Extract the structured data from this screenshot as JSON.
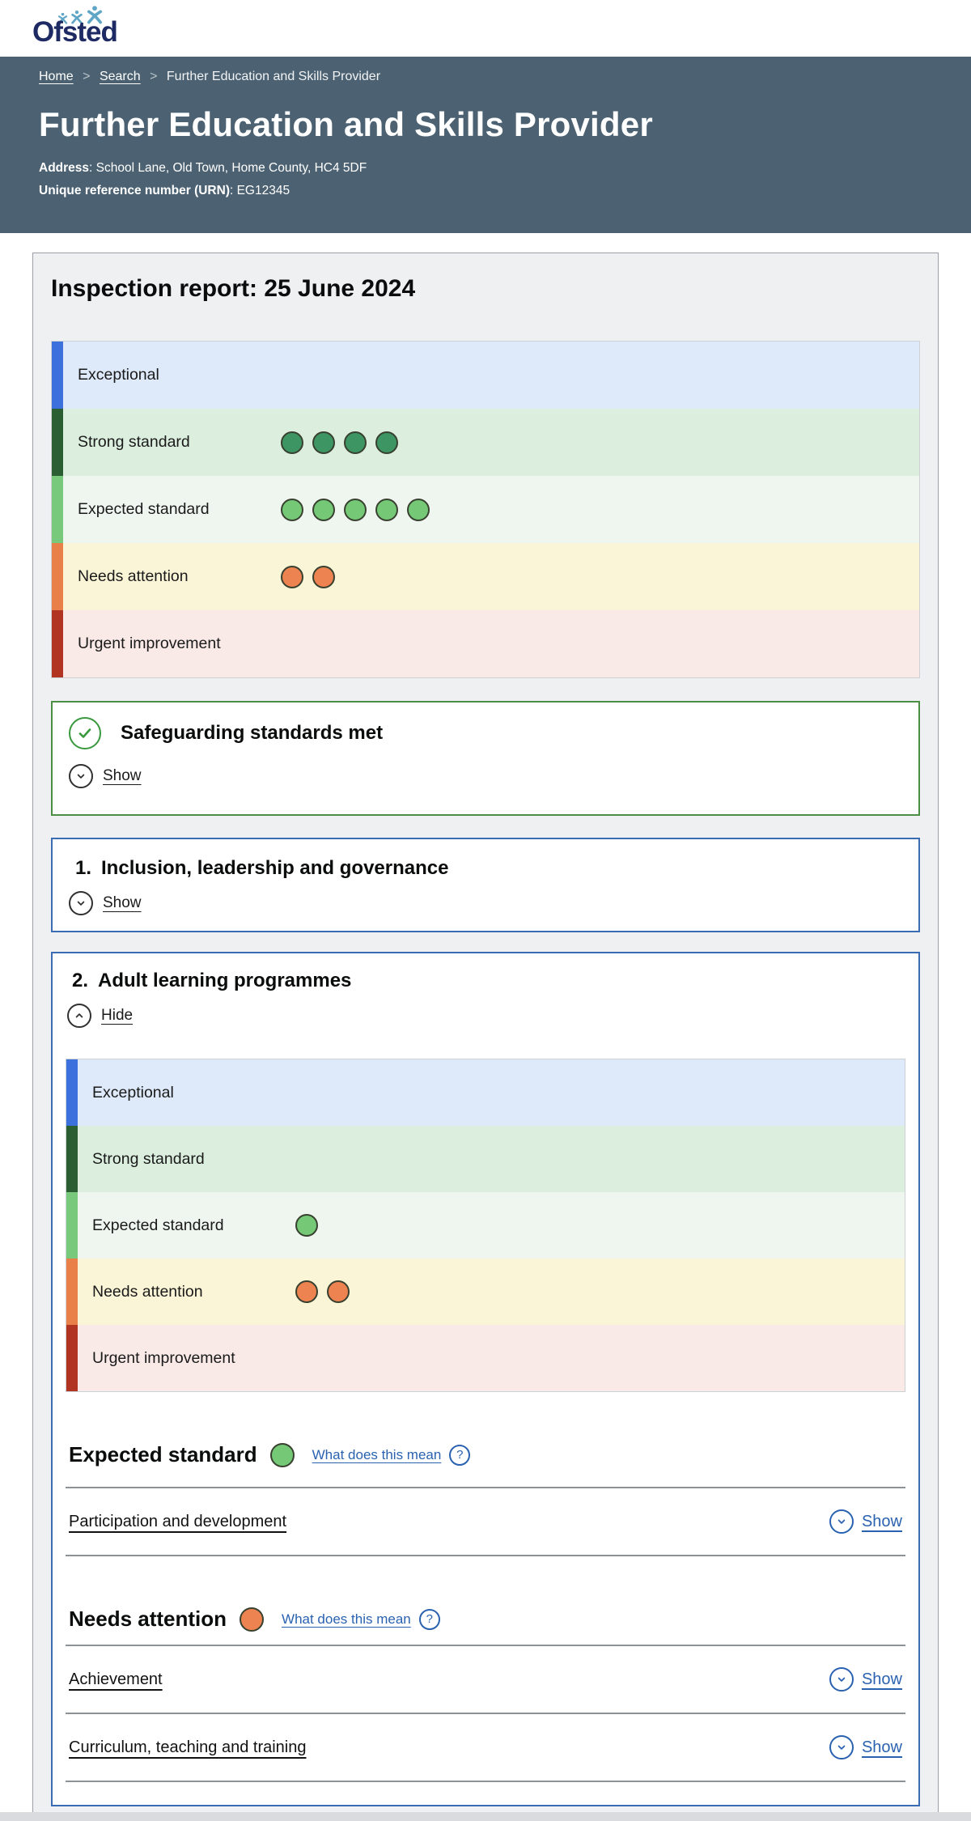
{
  "logo": {
    "text": "Ofsted"
  },
  "header": {
    "breadcrumb": {
      "home": "Home",
      "search": "Search",
      "current": "Further Education and Skills Provider",
      "separator": ">"
    },
    "title": "Further Education and Skills Provider",
    "address_label": "Address",
    "address_value": ": School Lane, Old Town, Home County, HC4 5DF",
    "urn_label": "Unique reference number (URN)",
    "urn_value": ": EG12345"
  },
  "report": {
    "heading": "Inspection report: 25 June 2024",
    "colors": {
      "header_band": "#4c6272",
      "link_blue": "#2a62b0",
      "safeguarding_green": "#4b8f44",
      "section_border_blue": "#3a6cb4"
    },
    "scale_overall": {
      "rows": [
        {
          "label": "Exceptional",
          "bg": "#deeafa",
          "bar": "#3b70dd",
          "dots": 0,
          "dot_color": ""
        },
        {
          "label": "Strong standard",
          "bg": "#dcefdf",
          "bar": "#2b5f33",
          "dots": 4,
          "dot_color": "#3d9563"
        },
        {
          "label": "Expected standard",
          "bg": "#eff6f0",
          "bar": "#79c97d",
          "dots": 5,
          "dot_color": "#74c876"
        },
        {
          "label": "Needs attention",
          "bg": "#fbf5d7",
          "bar": "#ea8049",
          "dots": 2,
          "dot_color": "#ec8350"
        },
        {
          "label": "Urgent improvement",
          "bg": "#f9eae8",
          "bar": "#b13422",
          "dots": 0,
          "dot_color": ""
        }
      ]
    },
    "safeguarding": {
      "title": "Safeguarding standards met",
      "toggle_label": "Show"
    },
    "sections": [
      {
        "number": "1.",
        "title": "Inclusion, leadership and governance",
        "toggle_label": "Show"
      },
      {
        "number": "2.",
        "title": "Adult learning programmes",
        "toggle_label": "Hide"
      }
    ],
    "scale_section2": {
      "rows": [
        {
          "label": "Exceptional",
          "bg": "#deeafa",
          "bar": "#3b70dd",
          "dots": 0,
          "dot_color": ""
        },
        {
          "label": "Strong standard",
          "bg": "#dcefdf",
          "bar": "#2b5f33",
          "dots": 0,
          "dot_color": ""
        },
        {
          "label": "Expected standard",
          "bg": "#eff6f0",
          "bar": "#79c97d",
          "dots": 1,
          "dot_color": "#74c876"
        },
        {
          "label": "Needs attention",
          "bg": "#fbf5d7",
          "bar": "#ea8049",
          "dots": 2,
          "dot_color": "#ec8350"
        },
        {
          "label": "Urgent improvement",
          "bg": "#f9eae8",
          "bar": "#b13422",
          "dots": 0,
          "dot_color": ""
        }
      ]
    },
    "judgements": [
      {
        "grade": "Expected standard",
        "dots": 1,
        "dot_color": "#74c876",
        "help_label": "What does this mean",
        "help_icon": "?",
        "items": [
          {
            "label": "Participation and development",
            "toggle_label": "Show"
          }
        ]
      },
      {
        "grade": "Needs attention",
        "dots": 1,
        "dot_color": "#ec8350",
        "help_label": "What does this mean",
        "help_icon": "?",
        "items": [
          {
            "label": "Achievement",
            "toggle_label": "Show"
          },
          {
            "label": "Curriculum, teaching and training",
            "toggle_label": "Show"
          }
        ]
      }
    ]
  }
}
